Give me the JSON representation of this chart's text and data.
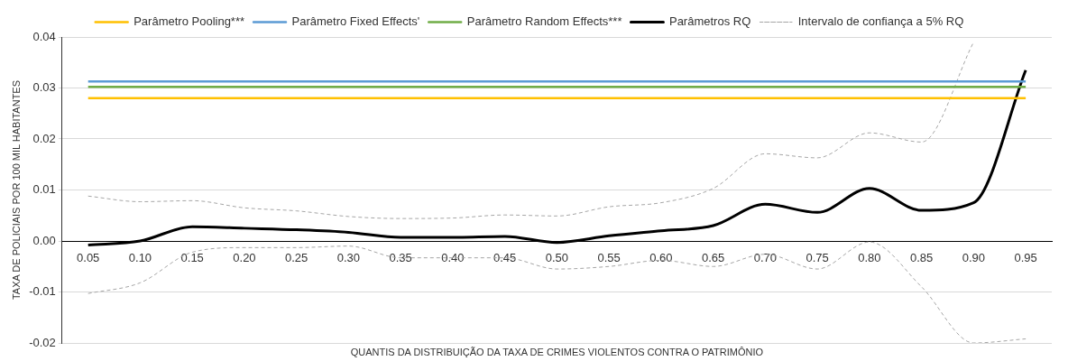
{
  "chart_data": {
    "type": "line",
    "xlabel": "QUANTIS DA DISTRIBUIÇÃO DA TAXA DE CRIMES VIOLENTOS CONTRA O PATRIMÔNIO",
    "ylabel": "TAXA DE POLICIAIS POR 100 MIL HABITANTES",
    "categories": [
      "0.05",
      "0.10",
      "0.15",
      "0.20",
      "0.25",
      "0.30",
      "0.35",
      "0.40",
      "0.45",
      "0.50",
      "0.55",
      "0.60",
      "0.65",
      "0.70",
      "0.75",
      "0.80",
      "0.85",
      "0.90",
      "0.95"
    ],
    "ylim": [
      -0.02,
      0.04
    ],
    "yticks": [
      {
        "value": -0.02,
        "label": "-0.02"
      },
      {
        "value": -0.01,
        "label": "-0.01"
      },
      {
        "value": 0,
        "label": "0.00"
      },
      {
        "value": 0.01,
        "label": "0.01"
      },
      {
        "value": 0.02,
        "label": "0.02"
      },
      {
        "value": 0.03,
        "label": "0.03"
      },
      {
        "value": 0.04,
        "label": "0.04"
      }
    ],
    "grid": "y",
    "legend": "top",
    "marker": "none",
    "series": [
      {
        "name": "Parâmetro Pooling***",
        "color": "#ffc000",
        "values": [
          0.028,
          0.028,
          0.028,
          0.028,
          0.028,
          0.028,
          0.028,
          0.028,
          0.028,
          0.028,
          0.028,
          0.028,
          0.028,
          0.028,
          0.028,
          0.028,
          0.028,
          0.028,
          0.028
        ]
      },
      {
        "name": "Parâmetro Fixed Effects'",
        "color": "#5b9bd5",
        "values": [
          0.0313,
          0.0313,
          0.0313,
          0.0313,
          0.0313,
          0.0313,
          0.0313,
          0.0313,
          0.0313,
          0.0313,
          0.0313,
          0.0313,
          0.0313,
          0.0313,
          0.0313,
          0.0313,
          0.0313,
          0.0313,
          0.0313
        ]
      },
      {
        "name": "Parâmetro Random Effects***",
        "color": "#70ad47",
        "values": [
          0.0302,
          0.0302,
          0.0302,
          0.0302,
          0.0302,
          0.0302,
          0.0302,
          0.0302,
          0.0302,
          0.0302,
          0.0302,
          0.0302,
          0.0302,
          0.0302,
          0.0302,
          0.0302,
          0.0302,
          0.0302,
          0.0302
        ]
      },
      {
        "name": "Parâmetros RQ",
        "color": "#000000",
        "values": [
          -0.0008,
          0.0,
          0.0028,
          0.0025,
          0.0022,
          0.0017,
          0.0007,
          0.0007,
          0.0009,
          -0.0003,
          0.001,
          0.002,
          0.003,
          0.0072,
          0.0056,
          0.0103,
          0.006,
          0.0075,
          0.0335
        ]
      },
      {
        "name": "Intervalo de confiança a 5% RQ",
        "color": "#a6a6a6",
        "line_style": "dashed",
        "values": [
          0.0088,
          0.0077,
          0.0079,
          0.0065,
          0.0059,
          0.0048,
          0.0044,
          0.0045,
          0.0051,
          0.0049,
          0.0067,
          0.0075,
          0.0103,
          0.0171,
          0.0163,
          0.0212,
          0.0194,
          0.039,
          null
        ]
      },
      {
        "color": "#a6a6a6",
        "line_style": "dashed",
        "values": [
          -0.0103,
          -0.0082,
          -0.0022,
          -0.0013,
          -0.0013,
          -0.001,
          -0.0033,
          -0.0033,
          -0.0033,
          -0.0055,
          -0.005,
          -0.0038,
          -0.005,
          -0.0026,
          -0.0055,
          -0.0002,
          -0.009,
          -0.02,
          -0.0192
        ]
      }
    ]
  }
}
